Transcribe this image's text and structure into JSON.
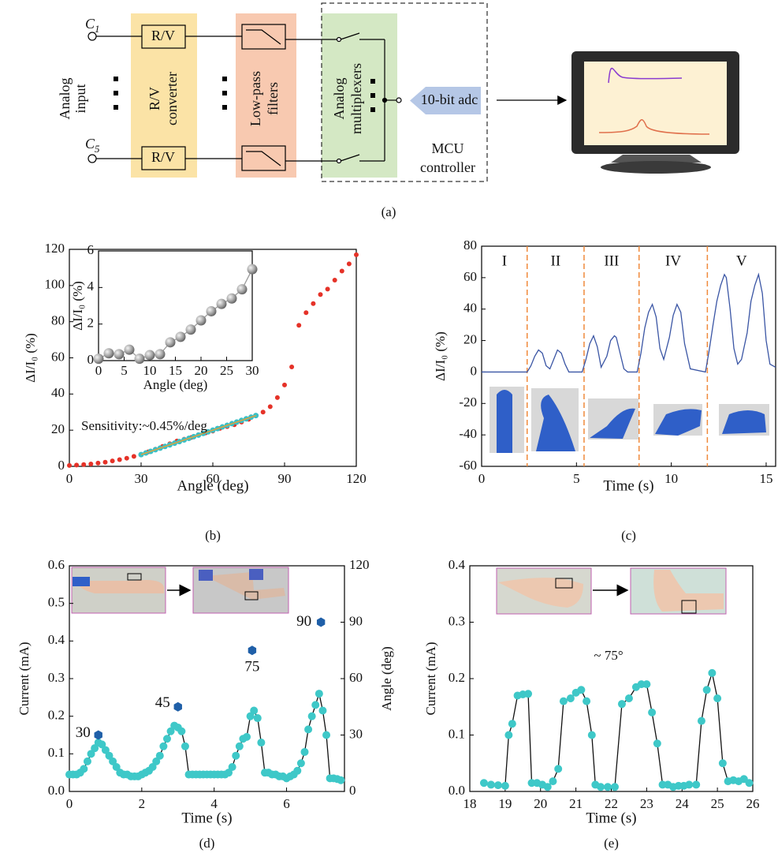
{
  "diagram": {
    "inputs": [
      {
        "letter": "C",
        "index": "1"
      },
      {
        "letter": "C",
        "index": "5"
      }
    ],
    "input_label": [
      "Analog",
      "input"
    ],
    "rv_boxes": [
      "R/V",
      "R/V"
    ],
    "converter_block": [
      "R/V",
      "converter"
    ],
    "filter_block": [
      "Low-pass",
      "filters"
    ],
    "mux_block": [
      "Analog",
      "multiplexers"
    ],
    "adc": "10-bit adc",
    "mcu": [
      "MCU",
      "controller"
    ],
    "panel_label": "(a)"
  },
  "chart_data": [
    {
      "type": "scatter",
      "panel_label": "(b)",
      "x_label": "Angle (deg)",
      "y_label": "ΔI/I₀ (%)",
      "xlim": [
        0,
        120
      ],
      "ylim": [
        0,
        120
      ],
      "xticks": [
        0,
        30,
        60,
        90,
        120
      ],
      "yticks": [
        0,
        20,
        40,
        60,
        80,
        100,
        120
      ],
      "annotation": "Sensitivity:~0.45%/deg",
      "series": [
        {
          "color": "#e53228",
          "marker": "circle",
          "line": false,
          "x": [
            0,
            3,
            6,
            9,
            12,
            15,
            18,
            21,
            24,
            27,
            30,
            33,
            36,
            39,
            42,
            45,
            48,
            51,
            54,
            57,
            60,
            63,
            66,
            69,
            72,
            75,
            78,
            81,
            84,
            87,
            90,
            93,
            96,
            99,
            102,
            105,
            108,
            111,
            114,
            117,
            120
          ],
          "values": [
            0.5,
            0.7,
            1,
            1.3,
            1.8,
            2.3,
            3,
            3.7,
            4.5,
            5.5,
            6.5,
            8,
            9.5,
            11,
            12.5,
            14,
            15,
            16,
            17.5,
            18.5,
            19.5,
            21,
            22,
            23,
            24.5,
            26,
            28,
            30,
            33,
            38,
            45,
            55,
            78,
            85,
            90,
            95,
            98,
            103,
            108,
            112,
            117
          ]
        },
        {
          "color": "#3cbfc4",
          "marker": "circle",
          "line": false,
          "x": [
            30,
            32,
            34,
            36,
            38,
            40,
            42,
            44,
            46,
            48,
            50,
            52,
            54,
            56,
            58,
            60,
            62,
            64,
            66,
            68,
            70,
            72,
            74,
            76,
            78
          ],
          "values": [
            6.5,
            7.4,
            8.3,
            9.2,
            10.1,
            11,
            11.9,
            12.8,
            13.7,
            14.6,
            15.5,
            16.4,
            17.3,
            18.2,
            19.1,
            20,
            20.9,
            21.8,
            22.7,
            23.6,
            24.5,
            25.4,
            26.3,
            27.2,
            28.1
          ]
        },
        {
          "color": "#f0a030",
          "marker": "none",
          "line": true,
          "x": [
            30,
            78
          ],
          "values": [
            6.5,
            28.1
          ]
        }
      ],
      "inset": {
        "x_label": "Angle (deg)",
        "y_label": "ΔI/I₀ (%)",
        "xlim": [
          0,
          30
        ],
        "ylim": [
          0,
          6
        ],
        "xticks": [
          0,
          5,
          10,
          15,
          20,
          25,
          30
        ],
        "yticks": [
          0,
          2,
          4,
          6
        ],
        "series": [
          {
            "color": "#9a9a9a",
            "marker": "sphere",
            "line": true,
            "x": [
              0,
              2,
              4,
              6,
              8,
              10,
              12,
              14,
              16,
              18,
              20,
              22,
              24,
              26,
              28,
              30
            ],
            "values": [
              0.1,
              0.4,
              0.35,
              0.6,
              0.1,
              0.3,
              0.35,
              1.0,
              1.3,
              1.7,
              2.2,
              2.7,
              3.1,
              3.4,
              3.9,
              5.0
            ]
          }
        ]
      }
    },
    {
      "type": "line",
      "panel_label": "(c)",
      "x_label": "Time (s)",
      "y_label": "ΔI/I₀ (%)",
      "xlim": [
        0,
        15.5
      ],
      "ylim": [
        -60,
        80
      ],
      "xticks": [
        0,
        5,
        10,
        15
      ],
      "yticks": [
        -60,
        -40,
        -20,
        0,
        20,
        40,
        60,
        80
      ],
      "dividers": [
        2.4,
        5.4,
        8.3,
        11.9
      ],
      "divider_color": "#f08a3c",
      "regions": [
        "I",
        "II",
        "III",
        "IV",
        "V"
      ],
      "series": [
        {
          "color": "#3a55a4",
          "marker": "none",
          "line": true,
          "x": [
            0,
            2.4,
            2.6,
            2.8,
            3.0,
            3.2,
            3.4,
            3.6,
            3.8,
            4.0,
            4.2,
            4.4,
            4.6,
            5.3,
            5.5,
            5.7,
            5.9,
            6.1,
            6.3,
            6.6,
            6.8,
            7.0,
            7.1,
            7.3,
            7.5,
            7.7,
            8.2,
            8.4,
            8.6,
            8.8,
            9.0,
            9.2,
            9.4,
            9.6,
            9.9,
            10.1,
            10.3,
            10.5,
            10.7,
            11.0,
            11.8,
            12.0,
            12.2,
            12.4,
            12.6,
            12.8,
            12.9,
            13.1,
            13.3,
            13.5,
            13.7,
            14.0,
            14.2,
            14.4,
            14.6,
            14.8,
            15.0,
            15.2,
            15.5
          ],
          "values": [
            0,
            0,
            4,
            10,
            14,
            12,
            4,
            2,
            8,
            14,
            12,
            5,
            0,
            0,
            8,
            18,
            23,
            16,
            3,
            10,
            20,
            23,
            22,
            12,
            2,
            0,
            0,
            12,
            28,
            38,
            43,
            35,
            15,
            8,
            22,
            36,
            43,
            38,
            18,
            2,
            0,
            14,
            30,
            45,
            55,
            62,
            60,
            40,
            15,
            5,
            8,
            25,
            45,
            55,
            62,
            50,
            20,
            5,
            3
          ]
        }
      ]
    },
    {
      "type": "line",
      "panel_label": "(d)",
      "x_label": "Time (s)",
      "y_label": "Current (mA)",
      "y2_label": "Angle (deg)",
      "xlim": [
        0,
        7.6
      ],
      "ylim": [
        0,
        0.6
      ],
      "y2lim": [
        0,
        120
      ],
      "xticks": [
        0,
        2,
        4,
        6
      ],
      "yticks": [
        {
          "value": 0,
          "label": "0.0"
        },
        0.1,
        0.2,
        0.3,
        0.4,
        0.5,
        0.6
      ],
      "y2ticks": [
        0,
        30,
        60,
        90,
        120
      ],
      "series": [
        {
          "color": "#3ec8c8",
          "line_color": "#111111",
          "marker": "circle",
          "line": true,
          "x": [
            0,
            0.1,
            0.2,
            0.3,
            0.4,
            0.5,
            0.6,
            0.7,
            0.8,
            0.9,
            1.0,
            1.1,
            1.2,
            1.3,
            1.4,
            1.5,
            1.6,
            1.7,
            1.8,
            1.9,
            2.0,
            2.1,
            2.2,
            2.3,
            2.4,
            2.5,
            2.6,
            2.7,
            2.8,
            2.9,
            3.0,
            3.1,
            3.2,
            3.3,
            3.4,
            3.5,
            3.6,
            3.7,
            3.8,
            3.9,
            4.0,
            4.1,
            4.2,
            4.3,
            4.4,
            4.5,
            4.6,
            4.7,
            4.8,
            4.9,
            5.0,
            5.1,
            5.2,
            5.3,
            5.4,
            5.5,
            5.6,
            5.7,
            5.8,
            5.9,
            6.0,
            6.1,
            6.2,
            6.3,
            6.4,
            6.5,
            6.6,
            6.7,
            6.8,
            6.9,
            7.0,
            7.1,
            7.2,
            7.3,
            7.4,
            7.5
          ],
          "values": [
            0.045,
            0.045,
            0.045,
            0.05,
            0.06,
            0.08,
            0.1,
            0.115,
            0.13,
            0.125,
            0.11,
            0.095,
            0.08,
            0.065,
            0.05,
            0.045,
            0.045,
            0.04,
            0.04,
            0.04,
            0.045,
            0.05,
            0.055,
            0.065,
            0.08,
            0.095,
            0.12,
            0.14,
            0.16,
            0.175,
            0.17,
            0.16,
            0.12,
            0.045,
            0.045,
            0.045,
            0.045,
            0.045,
            0.045,
            0.045,
            0.045,
            0.045,
            0.045,
            0.045,
            0.05,
            0.065,
            0.095,
            0.12,
            0.14,
            0.145,
            0.2,
            0.215,
            0.195,
            0.13,
            0.05,
            0.05,
            0.045,
            0.045,
            0.04,
            0.04,
            0.035,
            0.04,
            0.045,
            0.055,
            0.075,
            0.105,
            0.165,
            0.2,
            0.23,
            0.26,
            0.215,
            0.15,
            0.035,
            0.035,
            0.033,
            0.03
          ]
        },
        {
          "color": "#1f5fa8",
          "marker": "hexagon",
          "line": false,
          "axis": "y2",
          "data_labels": true,
          "x": [
            0.8,
            3.0,
            5.05,
            6.95
          ],
          "values": [
            30,
            45,
            75,
            90
          ]
        }
      ]
    },
    {
      "type": "line",
      "panel_label": "(e)",
      "x_label": "Time (s)",
      "y_label": "Current (mA)",
      "xlim": [
        18,
        26
      ],
      "ylim": [
        0,
        0.4
      ],
      "xticks": [
        18,
        19,
        20,
        21,
        22,
        23,
        24,
        25,
        26
      ],
      "yticks": [
        {
          "value": 0,
          "label": "0.0"
        },
        0.1,
        0.2,
        0.3,
        0.4
      ],
      "annotation": "~ 75°",
      "series": [
        {
          "color": "#3ec8c8",
          "line_color": "#111111",
          "marker": "circle",
          "line": true,
          "x": [
            18.4,
            18.6,
            18.8,
            19.0,
            19.1,
            19.2,
            19.35,
            19.5,
            19.65,
            19.75,
            19.9,
            20.05,
            20.2,
            20.35,
            20.5,
            20.65,
            20.85,
            21.0,
            21.15,
            21.3,
            21.45,
            21.55,
            21.7,
            21.9,
            22.1,
            22.3,
            22.5,
            22.7,
            22.85,
            23.0,
            23.15,
            23.3,
            23.45,
            23.6,
            23.75,
            23.9,
            24.05,
            24.2,
            24.4,
            24.55,
            24.7,
            24.85,
            25.0,
            25.15,
            25.3,
            25.45,
            25.6,
            25.75,
            25.9
          ],
          "values": [
            0.015,
            0.012,
            0.011,
            0.01,
            0.1,
            0.12,
            0.17,
            0.172,
            0.173,
            0.015,
            0.015,
            0.012,
            0.008,
            0.018,
            0.04,
            0.16,
            0.165,
            0.175,
            0.18,
            0.16,
            0.1,
            0.012,
            0.008,
            0.008,
            0.008,
            0.155,
            0.165,
            0.185,
            0.19,
            0.19,
            0.14,
            0.085,
            0.012,
            0.012,
            0.008,
            0.01,
            0.01,
            0.012,
            0.012,
            0.125,
            0.18,
            0.21,
            0.165,
            0.05,
            0.018,
            0.02,
            0.018,
            0.022,
            0.015
          ]
        }
      ]
    }
  ]
}
